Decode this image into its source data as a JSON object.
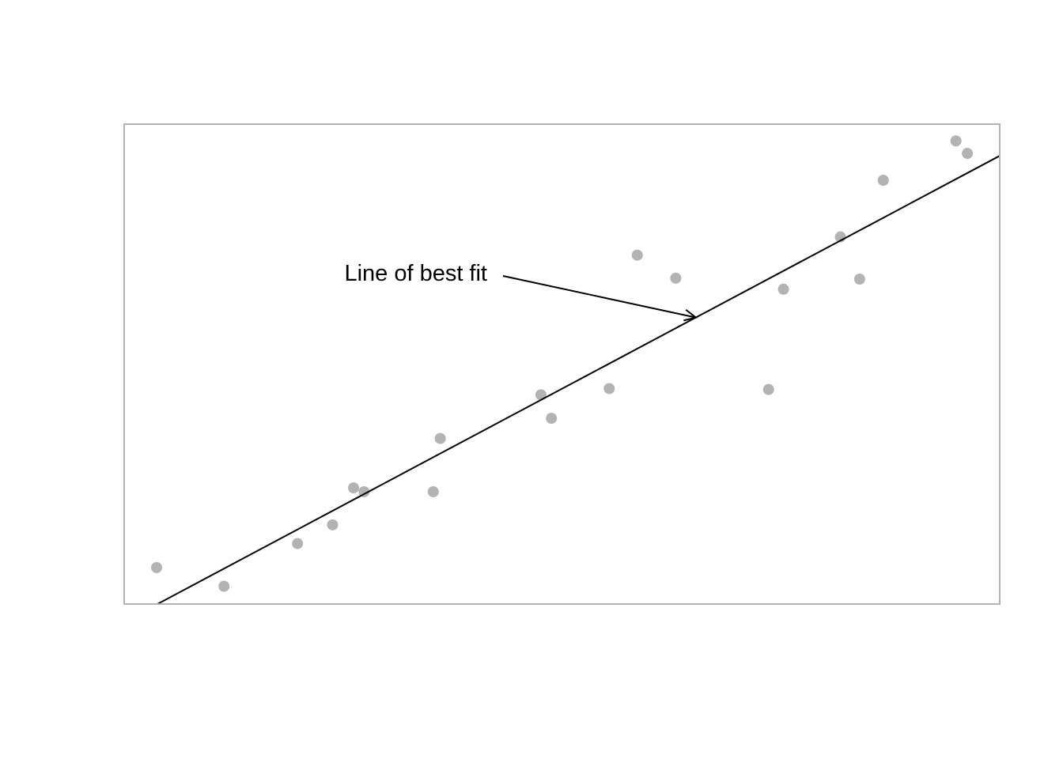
{
  "chart_data": {
    "type": "scatter",
    "title": "",
    "xlabel": "",
    "ylabel": "",
    "xlim": [
      0,
      100
    ],
    "ylim": [
      0,
      100
    ],
    "axes_visible": false,
    "grid": false,
    "box": true,
    "point_color": "#b3b3b3",
    "line_color": "#000000",
    "box_color": "#b3b3b3",
    "points": [
      {
        "x": 3.7,
        "y": 7.6
      },
      {
        "x": 11.4,
        "y": 3.7
      },
      {
        "x": 19.8,
        "y": 12.6
      },
      {
        "x": 23.8,
        "y": 16.5
      },
      {
        "x": 26.2,
        "y": 24.2
      },
      {
        "x": 27.4,
        "y": 23.4
      },
      {
        "x": 35.3,
        "y": 23.4
      },
      {
        "x": 36.1,
        "y": 34.5
      },
      {
        "x": 47.6,
        "y": 43.6
      },
      {
        "x": 48.8,
        "y": 38.7
      },
      {
        "x": 55.4,
        "y": 44.9
      },
      {
        "x": 58.6,
        "y": 72.7
      },
      {
        "x": 63.0,
        "y": 67.9
      },
      {
        "x": 73.6,
        "y": 44.7
      },
      {
        "x": 75.3,
        "y": 65.6
      },
      {
        "x": 81.8,
        "y": 76.5
      },
      {
        "x": 84.0,
        "y": 67.7
      },
      {
        "x": 86.7,
        "y": 88.3
      },
      {
        "x": 95.0,
        "y": 96.5
      },
      {
        "x": 96.3,
        "y": 93.9
      }
    ],
    "fit_line": {
      "x0": 3.8,
      "y0": 0,
      "x1": 100,
      "y1": 93.4
    },
    "annotation": {
      "text": "Line of best fit",
      "target": {
        "x": 65.3,
        "y": 59.7
      }
    }
  }
}
